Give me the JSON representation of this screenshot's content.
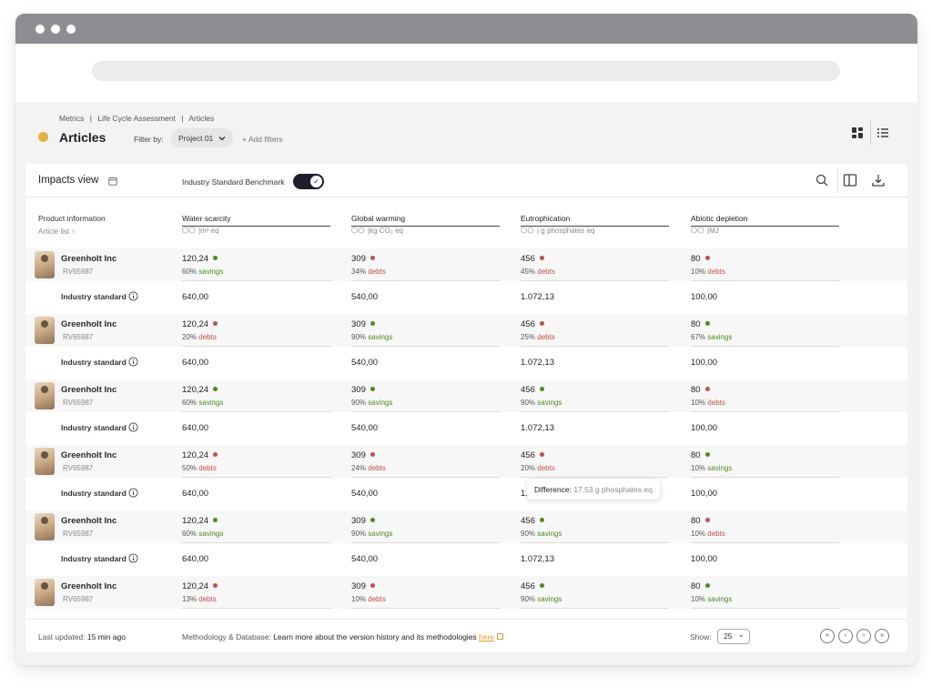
{
  "breadcrumb": [
    "Metrics",
    "|",
    "Life Cycle Assessment",
    "|",
    "Articles"
  ],
  "page_title": "Articles",
  "filter": {
    "label": "Filter by:",
    "selected": "Project 01",
    "add": "+ Add filters"
  },
  "card": {
    "title": "Impacts view",
    "benchmark_label": "Industry Standard Benchmark",
    "benchmark_on": true
  },
  "columns": {
    "product_head": "Product information",
    "product_sub": "Article list ↑",
    "metrics": [
      {
        "name": "Water scarcity",
        "unit": "|m³ eq"
      },
      {
        "name": "Global warming",
        "unit": "|kg CO₂ eq"
      },
      {
        "name": "Eutrophication",
        "unit": "| g phosphates eq"
      },
      {
        "name": "Abiotic depletion",
        "unit": "|MJ"
      }
    ]
  },
  "colors": {
    "good": "#4e8a1e",
    "bad": "#c0504d",
    "accent": "#e0962f",
    "status": "#e2b43f"
  },
  "standard_label": "Industry standard",
  "standard_values": [
    "640,00",
    "540,00",
    "1.072,13",
    "100,00"
  ],
  "rows": [
    {
      "company": "Greenholt Inc",
      "sku": "RV65987",
      "cells": [
        {
          "value": "120,24",
          "status": "good",
          "pct": "60%",
          "label": "savings"
        },
        {
          "value": "309",
          "status": "bad",
          "pct": "34%",
          "label": "debts"
        },
        {
          "value": "456",
          "status": "bad",
          "pct": "45%",
          "label": "debts"
        },
        {
          "value": "80",
          "status": "bad",
          "pct": "10%",
          "label": "debts"
        }
      ]
    },
    {
      "company": "Greenholt Inc",
      "sku": "RV65987",
      "cells": [
        {
          "value": "120,24",
          "status": "bad",
          "pct": "20%",
          "label": "debts"
        },
        {
          "value": "309",
          "status": "good",
          "pct": "90%",
          "label": "savings"
        },
        {
          "value": "456",
          "status": "bad",
          "pct": "25%",
          "label": "debts"
        },
        {
          "value": "80",
          "status": "good",
          "pct": "67%",
          "label": "savings"
        }
      ]
    },
    {
      "company": "Greenholt Inc",
      "sku": "RV65987",
      "cells": [
        {
          "value": "120,24",
          "status": "good",
          "pct": "60%",
          "label": "savings"
        },
        {
          "value": "309",
          "status": "good",
          "pct": "90%",
          "label": "savings"
        },
        {
          "value": "456",
          "status": "good",
          "pct": "90%",
          "label": "savings"
        },
        {
          "value": "80",
          "status": "bad",
          "pct": "10%",
          "label": "debts"
        }
      ]
    },
    {
      "company": "Greenholt Inc",
      "sku": "RV65987",
      "cells": [
        {
          "value": "120,24",
          "status": "bad",
          "pct": "50%",
          "label": "debts"
        },
        {
          "value": "309",
          "status": "bad",
          "pct": "24%",
          "label": "debts"
        },
        {
          "value": "456",
          "status": "bad",
          "pct": "20%",
          "label": "debts"
        },
        {
          "value": "80",
          "status": "good",
          "pct": "10%",
          "label": "savings"
        }
      ]
    },
    {
      "company": "Greenholt Inc",
      "sku": "RV65987",
      "cells": [
        {
          "value": "120,24",
          "status": "good",
          "pct": "60%",
          "label": "savings"
        },
        {
          "value": "309",
          "status": "good",
          "pct": "90%",
          "label": "savings"
        },
        {
          "value": "456",
          "status": "good",
          "pct": "90%",
          "label": "savings"
        },
        {
          "value": "80",
          "status": "bad",
          "pct": "10%",
          "label": "debts"
        }
      ]
    },
    {
      "company": "Greenholt Inc",
      "sku": "RV65987",
      "cells": [
        {
          "value": "120,24",
          "status": "bad",
          "pct": "13%",
          "label": "debts"
        },
        {
          "value": "309",
          "status": "bad",
          "pct": "10%",
          "label": "debts"
        },
        {
          "value": "456",
          "status": "good",
          "pct": "90%",
          "label": "savings"
        },
        {
          "value": "80",
          "status": "good",
          "pct": "10%",
          "label": "savings"
        }
      ]
    }
  ],
  "tooltip": {
    "label": "Difference:",
    "value": "17,53 g phosphates eq",
    "partial_cell": "1."
  },
  "footer": {
    "updated_label": "Last updated:",
    "updated_value": "15 min ago",
    "method_label": "Methodology & Database:",
    "method_text": "Learn more about the version history and its methodologies",
    "method_link": "here",
    "show_label": "Show:",
    "show_value": "25",
    "pagination": [
      "«",
      "‹",
      "›",
      "»"
    ]
  }
}
